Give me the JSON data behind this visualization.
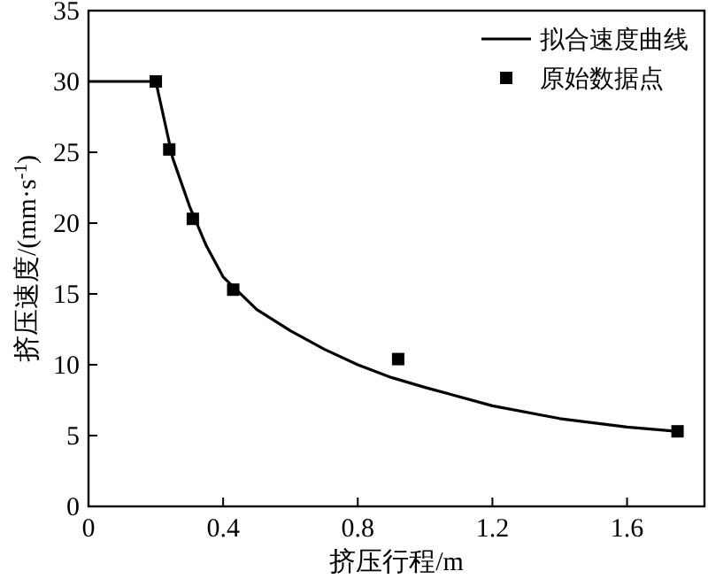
{
  "chart_data": {
    "type": "line",
    "xlabel": "挤压行程/m",
    "ylabel": "挤压速度/(mm·s$^{-1}$)",
    "xlim": [
      0,
      1.83
    ],
    "ylim": [
      0,
      35
    ],
    "xticks": [
      0,
      0.4,
      0.8,
      1.2,
      1.6
    ],
    "yticks": [
      0,
      5,
      10,
      15,
      20,
      25,
      30,
      35
    ],
    "grid": false,
    "legend": "top right",
    "series": [
      {
        "name": "拟合速度曲线",
        "color": "#000000",
        "marker": "none",
        "line_style": "solid",
        "x": [
          0,
          0.2,
          0.25,
          0.3,
          0.35,
          0.4,
          0.5,
          0.6,
          0.7,
          0.8,
          0.9,
          1.0,
          1.2,
          1.4,
          1.6,
          1.75
        ],
        "values": [
          30,
          30,
          24.6,
          21.2,
          18.4,
          16.2,
          13.9,
          12.4,
          11.1,
          10,
          9.1,
          8.4,
          7.1,
          6.2,
          5.6,
          5.3
        ]
      },
      {
        "name": "原始数据点",
        "type": "scatter",
        "color": "#000000",
        "marker": "square",
        "x": [
          0.2,
          0.24,
          0.31,
          0.43,
          0.92,
          1.75
        ],
        "values": [
          30,
          25.2,
          20.3,
          15.3,
          10.4,
          5.3
        ]
      }
    ]
  }
}
